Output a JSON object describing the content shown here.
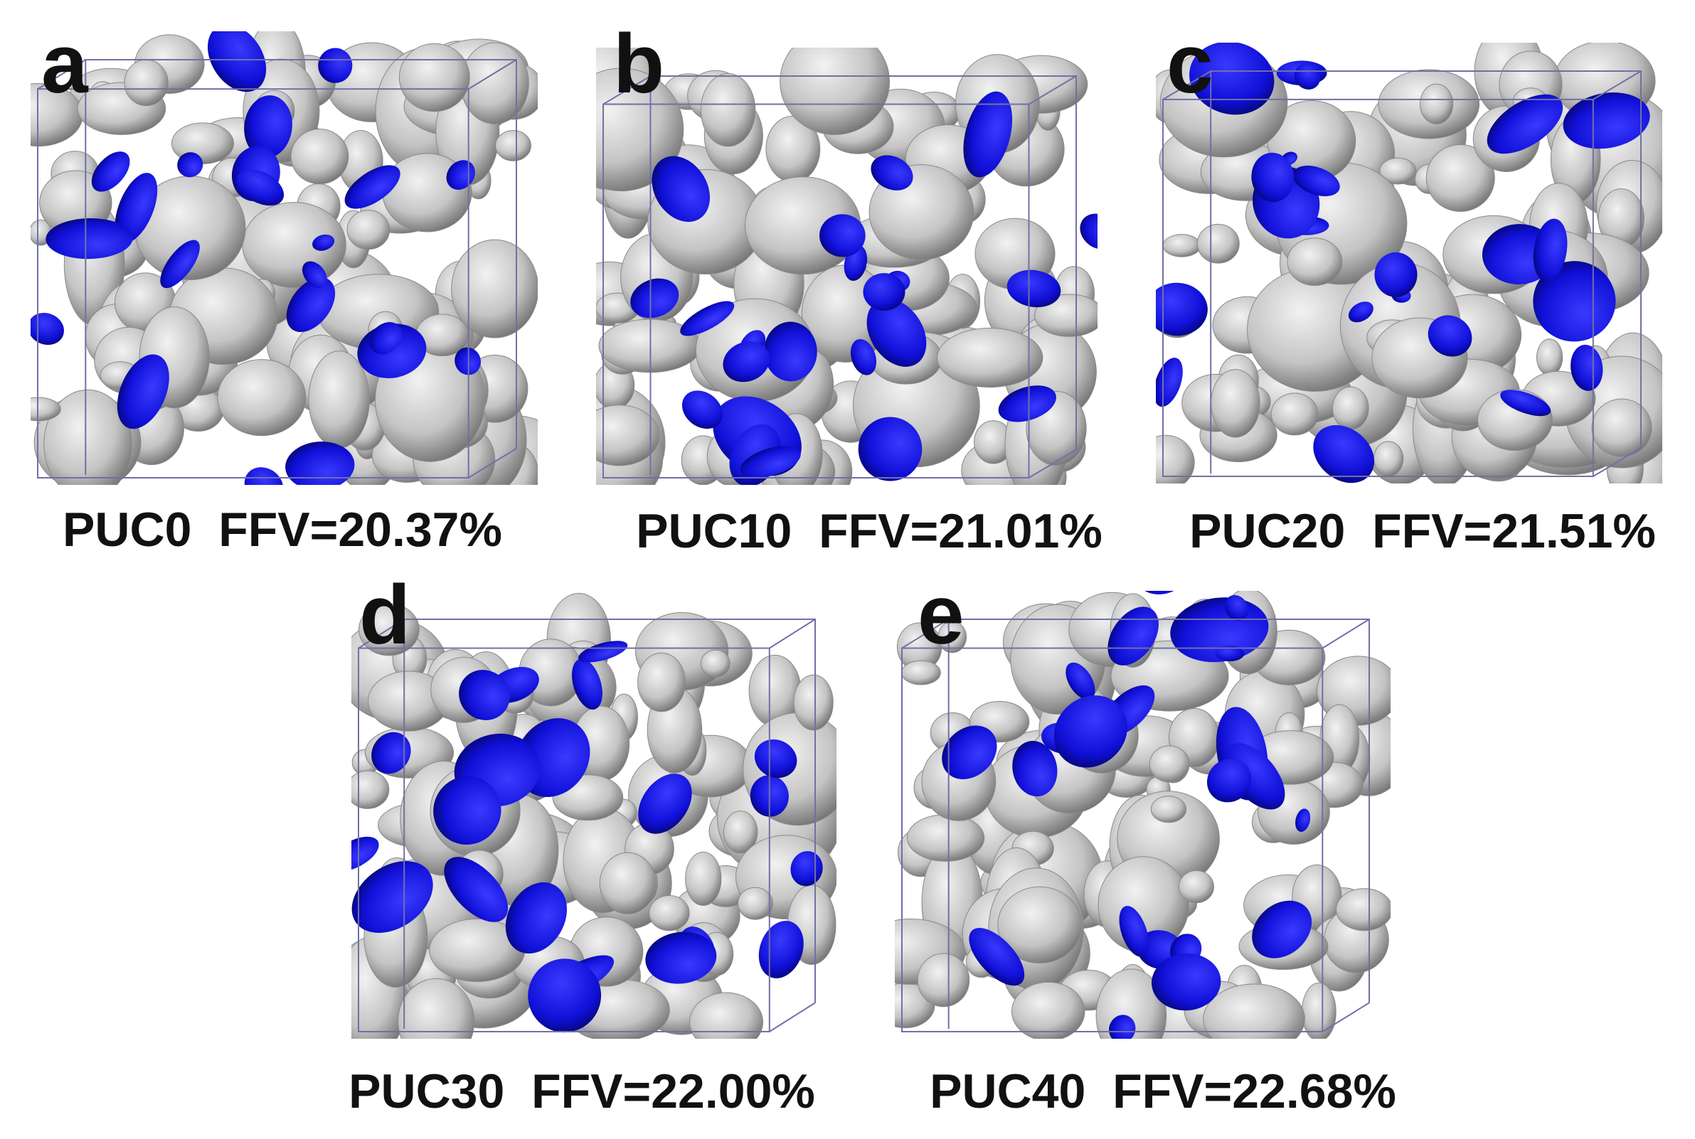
{
  "panels": [
    {
      "letter": "a",
      "caption": "PUC0  FFV=20.37%"
    },
    {
      "letter": "b",
      "caption": "PUC10  FFV=21.01%"
    },
    {
      "letter": "c",
      "caption": "PUC20  FFV=21.51%"
    },
    {
      "letter": "d",
      "caption": "PUC30  FFV=22.00%"
    },
    {
      "letter": "e",
      "caption": "PUC40  FFV=22.68%"
    }
  ]
}
